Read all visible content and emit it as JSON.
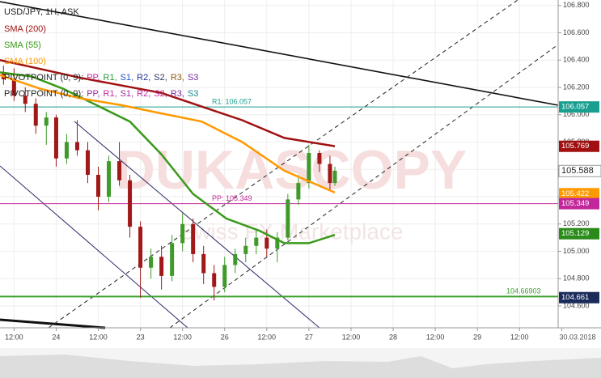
{
  "chart_data": {
    "type": "candlestick",
    "title": "USD/JPY, 1H, ASK",
    "x": [
      9,
      12,
      15.2,
      18.2,
      21.2,
      24,
      27,
      30,
      33,
      36,
      39,
      42,
      45,
      48,
      51,
      54,
      57,
      60,
      63,
      66,
      69,
      72,
      75,
      78,
      81,
      84,
      87,
      90,
      93,
      96,
      99,
      102,
      103.4
    ],
    "open": [
      106.3,
      106.26,
      106.14,
      106.08,
      105.92,
      105.98,
      105.68,
      105.8,
      105.74,
      105.56,
      105.4,
      105.66,
      105.52,
      105.18,
      104.88,
      104.96,
      104.82,
      105.06,
      105.2,
      104.98,
      104.84,
      104.74,
      104.9,
      104.98,
      105.04,
      105.1,
      105.02,
      105.1,
      105.38,
      105.5,
      105.72,
      105.64,
      105.5
    ],
    "high": [
      106.36,
      106.34,
      106.2,
      106.12,
      106.02,
      106.0,
      105.86,
      105.96,
      105.8,
      105.62,
      105.7,
      105.8,
      105.56,
      105.22,
      105.02,
      105.04,
      105.12,
      105.28,
      105.24,
      105.04,
      104.9,
      104.96,
      105.02,
      105.1,
      105.16,
      105.16,
      105.14,
      105.42,
      105.56,
      105.78,
      105.74,
      105.7,
      105.62
    ],
    "low": [
      106.22,
      106.1,
      106.02,
      105.86,
      105.78,
      105.62,
      105.64,
      105.7,
      105.5,
      105.3,
      105.36,
      105.48,
      105.1,
      104.66,
      104.8,
      104.72,
      104.78,
      105.0,
      104.92,
      104.76,
      104.64,
      104.7,
      104.84,
      104.92,
      104.98,
      104.96,
      104.92,
      105.08,
      105.34,
      105.46,
      105.58,
      105.44,
      105.48
    ],
    "close": [
      106.26,
      106.14,
      106.08,
      105.92,
      105.98,
      105.68,
      105.8,
      105.74,
      105.56,
      105.4,
      105.66,
      105.52,
      105.18,
      104.88,
      104.96,
      104.82,
      105.06,
      105.2,
      104.98,
      104.84,
      104.74,
      104.9,
      104.98,
      105.04,
      105.1,
      105.02,
      105.1,
      105.38,
      105.5,
      105.72,
      105.64,
      105.5,
      105.59
    ],
    "up_color": "#3f9a2a",
    "down_color": "#a01818",
    "series": [
      {
        "name": "SMA (200)",
        "color": "#a01010",
        "x": [
          8,
          31,
          54,
          77,
          89,
          103.4
        ],
        "values": [
          106.4,
          106.27,
          106.16,
          105.96,
          105.83,
          105.77
        ]
      },
      {
        "name": "SMA (55)",
        "color": "#3a9a1a",
        "x": [
          8,
          17,
          26,
          35.5,
          45,
          54,
          63,
          72.5,
          82,
          89,
          96,
          103.4
        ],
        "values": [
          106.31,
          106.28,
          106.19,
          106.07,
          105.95,
          105.71,
          105.42,
          105.24,
          105.15,
          105.06,
          105.06,
          105.12
        ]
      },
      {
        "name": "SMA (100)",
        "color": "#ff9900",
        "x": [
          8,
          19.5,
          31,
          42.5,
          54,
          65.5,
          77,
          89,
          103.4
        ],
        "values": [
          106.29,
          106.19,
          106.12,
          106.07,
          106.01,
          105.95,
          105.8,
          105.59,
          105.43
        ]
      }
    ],
    "pivot_legend": [
      {
        "label": "PIVOTPOINT (0, 9):",
        "items": [
          {
            "text": "PP,",
            "color": "#c2279b"
          },
          {
            "text": "R1,",
            "color": "#2a9a3a"
          },
          {
            "text": "S1,",
            "color": "#2255cc"
          },
          {
            "text": "R2,",
            "color": "#223399"
          },
          {
            "text": "S2,",
            "color": "#333366"
          },
          {
            "text": "R3,",
            "color": "#8a5a10"
          },
          {
            "text": "S3",
            "color": "#7a2aa0"
          }
        ]
      },
      {
        "label": "PIVOTPOINT (0, 9):",
        "items": [
          {
            "text": "PP,",
            "color": "#9a2aa0"
          },
          {
            "text": "R1,",
            "color": "#c2279b"
          },
          {
            "text": "S1,",
            "color": "#9a2aa0"
          },
          {
            "text": "R2,",
            "color": "#c2279b"
          },
          {
            "text": "S2,",
            "color": "#c2279b"
          },
          {
            "text": "R3,",
            "color": "#7a2aa0"
          },
          {
            "text": "S3",
            "color": "#1a8a8a"
          }
        ]
      }
    ],
    "levels": [
      {
        "label": "R1: 106.057",
        "value": 106.057,
        "color": "#1a9e8f"
      },
      {
        "label": "PP: 105.349",
        "value": 105.349,
        "color": "#c2279b"
      },
      {
        "label": "104.66903",
        "value": 104.66903,
        "color": "#3aa02a"
      }
    ],
    "price_tags": [
      {
        "value": 106.057,
        "color": "#1a9e8f"
      },
      {
        "value": 105.769,
        "color": "#a01010"
      },
      {
        "value": 105.588,
        "color": "#ffffff"
      },
      {
        "value": 105.422,
        "color": "#ff9900"
      },
      {
        "value": 105.349,
        "color": "#c2279b"
      },
      {
        "value": 105.129,
        "color": "#2a8a1a"
      },
      {
        "value": 104.661,
        "color": "#1a2a5a"
      }
    ],
    "watermark": "DUKASCOPY",
    "watermark_sub": "Swiss FX Marketplace",
    "date_label": "30.03.2018",
    "grid": true,
    "xlim": [
      8,
      167
    ],
    "ylim": [
      104.44,
      106.84
    ],
    "xticks": [
      {
        "value": 12,
        "label": "12:00"
      },
      24,
      {
        "value": 36,
        "label": "12:00"
      },
      {
        "value": 48,
        "label": "23"
      },
      {
        "value": 60,
        "label": "12:00"
      },
      {
        "value": 72,
        "label": "26"
      },
      {
        "value": 84,
        "label": "12:00"
      },
      {
        "value": 96,
        "label": "27"
      },
      {
        "value": 108,
        "label": "12:00"
      },
      {
        "value": 120,
        "label": "28"
      },
      {
        "value": 132,
        "label": "12:00"
      },
      {
        "value": 144,
        "label": "29"
      },
      {
        "value": 156,
        "label": "12:00"
      },
      {
        "value": 168,
        "label": "30"
      }
    ],
    "yticks": [
      {
        "value": 104.6,
        "label": "104.600"
      },
      {
        "value": 104.8,
        "label": "104.800"
      },
      {
        "value": 105.0,
        "label": "105.000"
      },
      {
        "value": 105.2,
        "label": "105.200"
      },
      {
        "value": 105.4,
        "label": "105.400"
      },
      {
        "value": 105.6,
        "label": "105.600"
      },
      {
        "value": 105.8,
        "label": "105.800"
      },
      {
        "value": 106.0,
        "label": "106.000"
      },
      {
        "value": 106.2,
        "label": "106.200"
      },
      {
        "value": 106.4,
        "label": "106.400"
      },
      {
        "value": 106.6,
        "label": "106.600"
      },
      {
        "value": 106.8,
        "label": "106.800"
      }
    ]
  }
}
